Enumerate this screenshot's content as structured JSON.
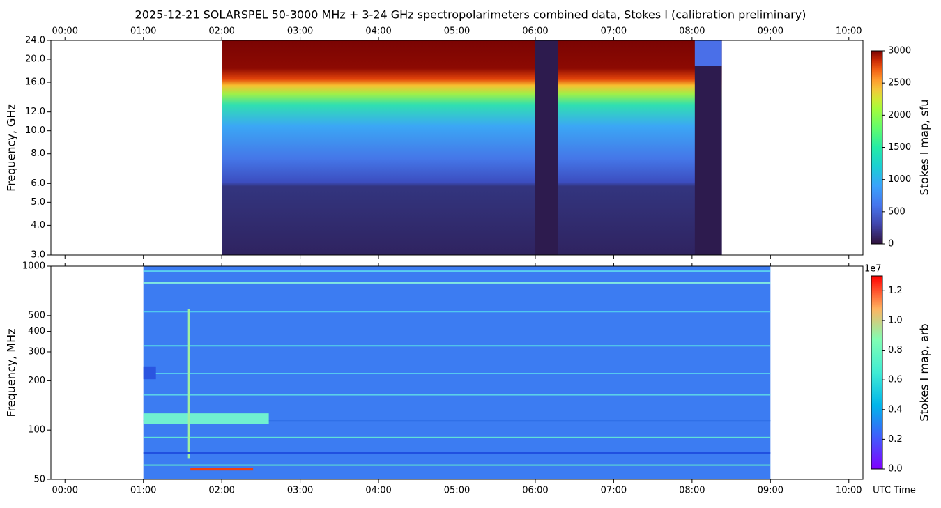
{
  "chart_data": [
    {
      "type": "heatmap",
      "title": "2025-12-21  SOLARSPEL  50-3000 MHz  +  3-24 GHz  spectropolarimeters combined data,  Stokes I  (calibration preliminary)",
      "ylabel": "Frequency, GHz",
      "y_log": true,
      "xlim": [
        -0.18,
        10.18
      ],
      "xticks": [
        {
          "value": 0,
          "label": "00:00"
        },
        {
          "value": 1,
          "label": "01:00"
        },
        {
          "value": 2,
          "label": "02:00"
        },
        {
          "value": 3,
          "label": "03:00"
        },
        {
          "value": 4,
          "label": "04:00"
        },
        {
          "value": 5,
          "label": "05:00"
        },
        {
          "value": 6,
          "label": "06:00"
        },
        {
          "value": 7,
          "label": "07:00"
        },
        {
          "value": 8,
          "label": "08:00"
        },
        {
          "value": 9,
          "label": "09:00"
        },
        {
          "value": 10,
          "label": "10:00"
        }
      ],
      "ylim": [
        3,
        24
      ],
      "yticks": [
        {
          "value": 3,
          "label": "3.0"
        },
        {
          "value": 4,
          "label": "4.0"
        },
        {
          "value": 5,
          "label": "5.0"
        },
        {
          "value": 6,
          "label": "6.0"
        },
        {
          "value": 8,
          "label": "8.0"
        },
        {
          "value": 10,
          "label": "10.0"
        },
        {
          "value": 12,
          "label": "12.0"
        },
        {
          "value": 16,
          "label": "16.0"
        },
        {
          "value": 20,
          "label": "20.0"
        },
        {
          "value": 24,
          "label": "24.0"
        }
      ],
      "x_extent": [
        2.0,
        8.38
      ],
      "colorbar_label": "Stokes I map, sfu",
      "clim": [
        0,
        3000
      ],
      "cticks": [
        0,
        500,
        1000,
        1500,
        2000,
        2500,
        3000
      ]
    },
    {
      "type": "heatmap",
      "ylabel": "Frequency, MHz",
      "xlabel": "UTC Time",
      "y_log": true,
      "xlim": [
        -0.18,
        10.18
      ],
      "xticks": [
        {
          "value": 0,
          "label": "00:00"
        },
        {
          "value": 1,
          "label": "01:00"
        },
        {
          "value": 2,
          "label": "02:00"
        },
        {
          "value": 3,
          "label": "03:00"
        },
        {
          "value": 4,
          "label": "04:00"
        },
        {
          "value": 5,
          "label": "05:00"
        },
        {
          "value": 6,
          "label": "06:00"
        },
        {
          "value": 7,
          "label": "07:00"
        },
        {
          "value": 8,
          "label": "08:00"
        },
        {
          "value": 9,
          "label": "09:00"
        },
        {
          "value": 10,
          "label": "10:00"
        }
      ],
      "ylim": [
        50,
        1000
      ],
      "yticks": [
        50,
        100,
        200,
        300,
        400,
        500,
        1000
      ],
      "x_extent": [
        1.0,
        9.0
      ],
      "colorbar_label": "Stokes I map, arb",
      "colorbar_offset": "1e7",
      "clim": [
        0,
        13000000
      ],
      "cticks": [
        {
          "value": 0,
          "label": "0.0"
        },
        {
          "value": 2000000,
          "label": "0.2"
        },
        {
          "value": 4000000,
          "label": "0.4"
        },
        {
          "value": 6000000,
          "label": "0.6"
        },
        {
          "value": 8000000,
          "label": "0.8"
        },
        {
          "value": 10000000,
          "label": "1.0"
        },
        {
          "value": 12000000,
          "label": "1.2"
        }
      ]
    }
  ]
}
